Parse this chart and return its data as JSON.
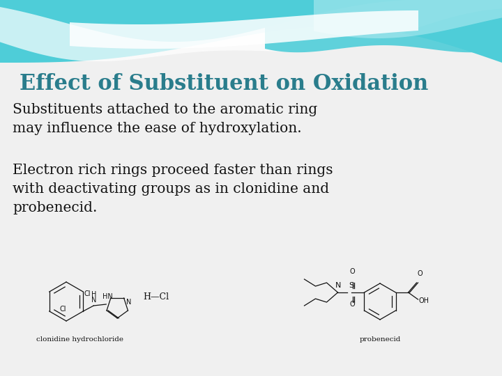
{
  "title": "Effect of Substituent on Oxidation",
  "title_color": "#2a7d8c",
  "title_fontsize": 22,
  "body_text_1": "Substituents attached to the aromatic ring\nmay influence the ease of hydroxylation.",
  "body_text_2": "Electron rich rings proceed faster than rings\nwith deactivating groups as in clonidine and\nprobenecid.",
  "body_color": "#111111",
  "body_fontsize": 14.5,
  "caption_1": "clonidine hydrochloride",
  "caption_2": "probenecid",
  "caption_fontsize": 7.5,
  "bg_color": "#f0f0f0",
  "wave_teal": "#4ecdd8",
  "wave_light": "#b0eaf0",
  "wave_white": "#e8f8fa"
}
